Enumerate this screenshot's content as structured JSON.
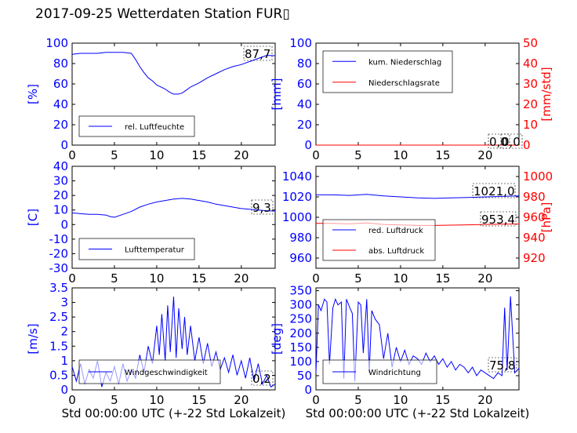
{
  "page_title": "2017-09-25 Wetterdaten Station FUR▯",
  "xlabel": "Std 00:00:00 UTC (+-22 Std Lokalzeit)",
  "chart_data": [
    {
      "id": "humidity",
      "type": "line",
      "ylabel": "[%]",
      "ylim": [
        0,
        100
      ],
      "yticks": [
        0,
        20,
        40,
        60,
        80,
        100
      ],
      "xlim": [
        0,
        24
      ],
      "xticks": [
        0,
        5,
        10,
        15,
        20
      ],
      "legend": "lower-left",
      "series": [
        {
          "name": "rel. Luftfeuchte",
          "color": "#0000ff",
          "x": [
            0,
            1,
            2,
            3,
            4,
            5,
            6,
            7,
            7.5,
            8,
            8.5,
            9,
            9.5,
            10,
            10.5,
            11,
            11.5,
            12,
            12.5,
            13,
            13.5,
            14,
            15,
            16,
            17,
            18,
            19,
            20,
            21,
            22,
            23,
            24
          ],
          "y": [
            89,
            90,
            90,
            90,
            91,
            91,
            91,
            90,
            84,
            77,
            71,
            66,
            63,
            59,
            57,
            55,
            52,
            50,
            50,
            51,
            54,
            57,
            61,
            66,
            70,
            74,
            77,
            79,
            82,
            85,
            88,
            87.7
          ]
        }
      ],
      "annotation": "87,7"
    },
    {
      "id": "precip",
      "type": "line",
      "ylabel": "[mm]",
      "ylabel2": "[mm/std]",
      "ylim": [
        0,
        100
      ],
      "yticks": [
        0,
        20,
        40,
        60,
        80,
        100
      ],
      "ylim2": [
        0,
        50
      ],
      "yticks2": [
        0,
        10,
        20,
        30,
        40,
        50
      ],
      "xlim": [
        0,
        24
      ],
      "xticks": [
        0,
        5,
        10,
        15,
        20
      ],
      "legend": "upper-left",
      "series": [
        {
          "name": "kum. Niederschlag",
          "color": "#0000ff",
          "axis": "left",
          "x": [
            0,
            24
          ],
          "y": [
            0,
            0
          ]
        },
        {
          "name": "Niederschlagsrate",
          "color": "#ff0000",
          "axis": "right",
          "x": [
            0,
            24
          ],
          "y": [
            0,
            0
          ]
        }
      ],
      "annotation": "0,0",
      "annotation2": "0,0"
    },
    {
      "id": "temperature",
      "type": "line",
      "ylabel": "[C]",
      "ylim": [
        -30,
        40
      ],
      "yticks": [
        -30,
        -20,
        -10,
        0,
        10,
        20,
        30,
        40
      ],
      "xlim": [
        0,
        24
      ],
      "xticks": [
        0,
        5,
        10,
        15,
        20
      ],
      "legend": "lower-left",
      "series": [
        {
          "name": "Lufttemperatur",
          "color": "#0000ff",
          "x": [
            0,
            1,
            2,
            3,
            4,
            4.5,
            5,
            6,
            7,
            8,
            9,
            10,
            11,
            12,
            13,
            14,
            15,
            16,
            17,
            18,
            19,
            20,
            21,
            22,
            23,
            24
          ],
          "y": [
            8,
            7.5,
            7,
            7,
            6.5,
            5.5,
            5,
            7,
            9,
            12,
            14,
            15.5,
            16.5,
            17.5,
            18,
            17.5,
            16.5,
            15.5,
            14,
            13,
            12,
            11,
            10.5,
            10,
            9.5,
            9.3
          ]
        }
      ],
      "annotation": "9,3"
    },
    {
      "id": "pressure",
      "type": "line",
      "ylabel2": "[hPa]",
      "ylim": [
        950,
        1050
      ],
      "yticks": [
        960,
        980,
        1000,
        1020,
        1040
      ],
      "ylim2": [
        910,
        1010
      ],
      "yticks2": [
        920,
        940,
        960,
        980,
        1000
      ],
      "xlim": [
        0,
        24
      ],
      "xticks": [
        0,
        5,
        10,
        15,
        20
      ],
      "legend": "lower-left",
      "series": [
        {
          "name": "red. Luftdruck",
          "color": "#0000ff",
          "axis": "left",
          "x": [
            0,
            2,
            4,
            6,
            8,
            10,
            12,
            14,
            16,
            18,
            20,
            22,
            24
          ],
          "y": [
            1022,
            1022,
            1021.5,
            1022.5,
            1021,
            1020,
            1019,
            1018.5,
            1019,
            1019.5,
            1020,
            1020.5,
            1021
          ]
        },
        {
          "name": "abs. Luftdruck",
          "color": "#ff0000",
          "axis": "right",
          "x": [
            0,
            2,
            4,
            6,
            8,
            10,
            12,
            14,
            16,
            18,
            20,
            22,
            24
          ],
          "y": [
            954,
            954,
            953.5,
            954.5,
            953,
            952.5,
            952,
            952,
            952.3,
            952.6,
            953,
            953.2,
            953.4
          ]
        }
      ],
      "annotation": "1021,0",
      "annotation2": "953,4"
    },
    {
      "id": "windspeed",
      "type": "line",
      "ylabel": "[m/s]",
      "ylim": [
        0,
        3.5
      ],
      "yticks": [
        0,
        0.5,
        1,
        1.5,
        2,
        2.5,
        3,
        3.5
      ],
      "xlim": [
        0,
        24
      ],
      "xticks": [
        0,
        5,
        10,
        15,
        20
      ],
      "legend": "lower-center",
      "series": [
        {
          "name": "Windgeschwindigkeit",
          "color": "#0000ff",
          "x": [
            0,
            0.5,
            1,
            1.5,
            2,
            2.5,
            3,
            3.5,
            4,
            4.5,
            5,
            5.5,
            6,
            6.5,
            7,
            7.5,
            8,
            8.5,
            9,
            9.5,
            10,
            10.3,
            10.6,
            11,
            11.3,
            11.6,
            12,
            12.3,
            12.6,
            13,
            13.3,
            13.6,
            14,
            14.5,
            15,
            15.5,
            16,
            16.5,
            17,
            17.5,
            18,
            18.5,
            19,
            19.5,
            20,
            20.5,
            21,
            21.5,
            22,
            22.5,
            23,
            23.5,
            24
          ],
          "y": [
            0.8,
            0.3,
            0.9,
            0.2,
            0.7,
            0.4,
            1.0,
            0.1,
            0.6,
            0.3,
            0.8,
            0.2,
            0.9,
            0.3,
            0.7,
            0.4,
            1.2,
            0.6,
            1.5,
            0.9,
            2.2,
            1.2,
            2.6,
            1.0,
            2.9,
            1.3,
            3.2,
            1.1,
            2.8,
            1.4,
            2.5,
            1.2,
            2.2,
            1.0,
            1.8,
            0.9,
            1.6,
            0.8,
            1.3,
            0.7,
            1.1,
            0.6,
            1.2,
            0.5,
            1.0,
            0.4,
            1.1,
            0.3,
            0.9,
            0.2,
            0.5,
            0.1,
            0.2
          ]
        }
      ],
      "annotation": "0,2"
    },
    {
      "id": "winddir",
      "type": "line",
      "ylabel": "[deg]",
      "ylim": [
        0,
        360
      ],
      "yticks": [
        0,
        50,
        100,
        150,
        200,
        250,
        300,
        350
      ],
      "xlim": [
        0,
        24
      ],
      "xticks": [
        0,
        5,
        10,
        15,
        20
      ],
      "legend": "lower-left",
      "series": [
        {
          "name": "Windrichtung",
          "color": "#0000ff",
          "x": [
            0,
            0.3,
            0.6,
            1,
            1.3,
            1.6,
            2,
            2.3,
            2.6,
            3,
            3.3,
            3.6,
            4,
            4.3,
            4.6,
            5,
            5.3,
            5.6,
            6,
            6.3,
            6.6,
            7,
            7.5,
            8,
            8.5,
            9,
            9.5,
            10,
            10.5,
            11,
            11.5,
            12,
            12.5,
            13,
            13.5,
            14,
            14.5,
            15,
            15.5,
            16,
            16.5,
            17,
            17.5,
            18,
            18.5,
            19,
            19.5,
            20,
            20.5,
            21,
            21.5,
            22,
            22.3,
            22.6,
            23,
            23.5,
            24
          ],
          "y": [
            60,
            300,
            280,
            320,
            310,
            90,
            290,
            320,
            300,
            310,
            40,
            320,
            290,
            270,
            30,
            310,
            300,
            130,
            320,
            60,
            280,
            250,
            230,
            110,
            200,
            80,
            150,
            100,
            140,
            90,
            120,
            110,
            90,
            130,
            100,
            120,
            90,
            110,
            80,
            100,
            70,
            90,
            80,
            60,
            80,
            50,
            70,
            60,
            50,
            40,
            60,
            50,
            290,
            70,
            330,
            60,
            75.8
          ]
        }
      ],
      "annotation": "75,8"
    }
  ]
}
